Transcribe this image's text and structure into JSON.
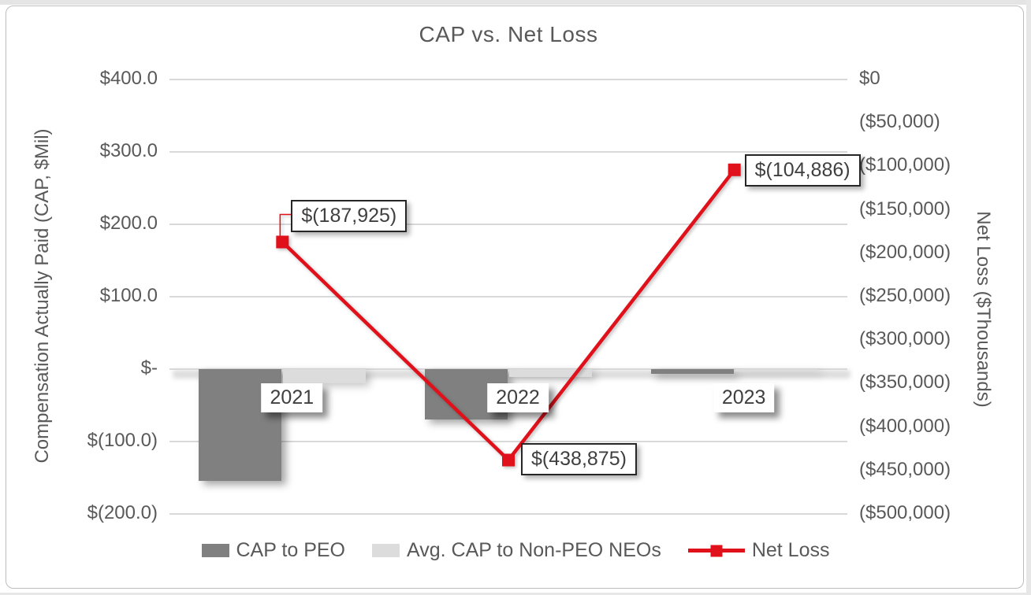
{
  "title": "CAP vs. Net Loss",
  "left_axis": {
    "title": "Compensation Actually Paid (CAP, $Mil)",
    "ticks": [
      "$400.0",
      "$300.0",
      "$200.0",
      "$100.0",
      "$-",
      "$(100.0)",
      "$(200.0)"
    ],
    "tick_values": [
      400,
      300,
      200,
      100,
      0,
      -100,
      -200
    ],
    "range": [
      -200,
      400
    ]
  },
  "right_axis": {
    "title": "Net Loss ($Thousands)",
    "ticks": [
      "$0",
      "($50,000)",
      "($100,000)",
      "($150,000)",
      "($200,000)",
      "($250,000)",
      "($300,000)",
      "($350,000)",
      "($400,000)",
      "($450,000)",
      "($500,000)"
    ],
    "tick_values": [
      0,
      -50000,
      -100000,
      -150000,
      -200000,
      -250000,
      -300000,
      -350000,
      -400000,
      -450000,
      -500000
    ],
    "range": [
      -500000,
      0
    ]
  },
  "chart_data": {
    "type": "combo (bar + line)",
    "title": "CAP vs. Net Loss",
    "categories": [
      "2021",
      "2022",
      "2023"
    ],
    "series": [
      {
        "name": "CAP to PEO",
        "type": "bar",
        "axis": "left",
        "unit": "$Mil",
        "values": [
          -154,
          -70,
          -7
        ]
      },
      {
        "name": "Avg. CAP  to Non-PEO NEOs",
        "type": "bar",
        "axis": "left",
        "unit": "$Mil",
        "values": [
          -20,
          -11,
          -3
        ]
      },
      {
        "name": "Net Loss",
        "type": "line",
        "axis": "right",
        "unit": "$Thousands",
        "values": [
          -187925,
          -438875,
          -104886
        ],
        "data_labels": [
          "$(187,925)",
          "$(438,875)",
          "$(104,886)"
        ]
      }
    ],
    "xlabel": "",
    "ylabel_left": "Compensation Actually Paid (CAP, $Mil)",
    "ylabel_right": "Net Loss ($Thousands)",
    "ylim_left": [
      -200,
      400
    ],
    "ylim_right": [
      -500000,
      0
    ],
    "grid": true,
    "legend_position": "bottom"
  },
  "legend": [
    {
      "label": "CAP to PEO",
      "swatch": "bar-dark"
    },
    {
      "label": "Avg. CAP  to Non-PEO NEOs",
      "swatch": "bar-light"
    },
    {
      "label": "Net Loss",
      "swatch": "line-marker"
    }
  ],
  "colors": {
    "bar_dark": "#808080",
    "bar_light": "#dcdcdc",
    "line_red": "#e0111a",
    "axis_text": "#595959",
    "label_text": "#3f3f3f",
    "gridline": "#d9d9d9"
  }
}
